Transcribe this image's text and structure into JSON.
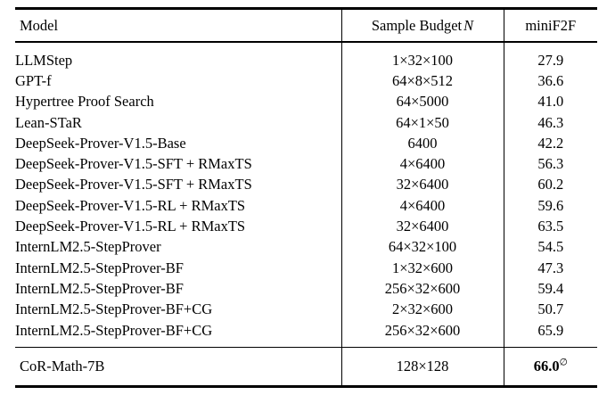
{
  "table": {
    "header": {
      "model": "Model",
      "budget_label": "Sample Budget",
      "budget_math": "N",
      "score": "miniF2F"
    },
    "rows": [
      {
        "model": "LLMStep",
        "budget": "1×32×100",
        "score": "27.9"
      },
      {
        "model": "GPT-f",
        "budget": "64×8×512",
        "score": "36.6"
      },
      {
        "model": "Hypertree Proof Search",
        "budget": "64×5000",
        "score": "41.0"
      },
      {
        "model": "Lean-STaR",
        "budget": "64×1×50",
        "score": "46.3"
      },
      {
        "model": "DeepSeek-Prover-V1.5-Base",
        "budget": "6400",
        "score": "42.2"
      },
      {
        "model": "DeepSeek-Prover-V1.5-SFT + RMaxTS",
        "budget": "4×6400",
        "score": "56.3"
      },
      {
        "model": "DeepSeek-Prover-V1.5-SFT + RMaxTS",
        "budget": "32×6400",
        "score": "60.2"
      },
      {
        "model": "DeepSeek-Prover-V1.5-RL + RMaxTS",
        "budget": "4×6400",
        "score": "59.6"
      },
      {
        "model": "DeepSeek-Prover-V1.5-RL + RMaxTS",
        "budget": "32×6400",
        "score": "63.5"
      },
      {
        "model": "InternLM2.5-StepProver",
        "budget": "64×32×100",
        "score": "54.5"
      },
      {
        "model": "InternLM2.5-StepProver-BF",
        "budget": "1×32×600",
        "score": "47.3"
      },
      {
        "model": "InternLM2.5-StepProver-BF",
        "budget": "256×32×600",
        "score": "59.4"
      },
      {
        "model": "InternLM2.5-StepProver-BF+CG",
        "budget": "2×32×600",
        "score": "50.7"
      },
      {
        "model": "InternLM2.5-StepProver-BF+CG",
        "budget": "256×32×600",
        "score": "65.9"
      }
    ],
    "final": {
      "model": "CoR-Math-7B",
      "budget": "128×128",
      "score": "66.0",
      "score_superscript": "∅"
    }
  }
}
